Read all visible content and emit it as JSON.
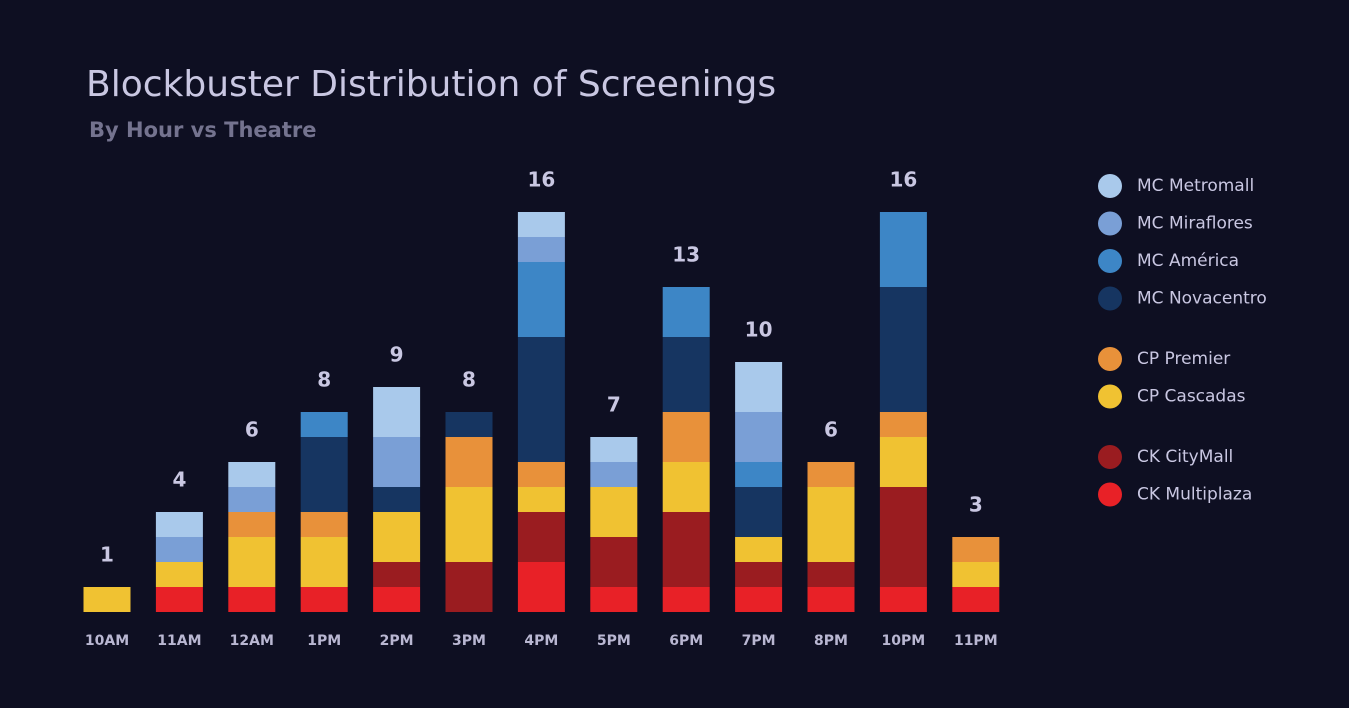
{
  "chart_data": {
    "type": "stacked_bar",
    "title": "Blockbuster Distribution of Screenings",
    "subtitle": "By Hour vs Theatre",
    "categories": [
      "10AM",
      "11AM",
      "12AM",
      "1PM",
      "2PM",
      "3PM",
      "4PM",
      "5PM",
      "6PM",
      "7PM",
      "8PM",
      "10PM",
      "11PM"
    ],
    "totals": [
      1,
      4,
      6,
      8,
      9,
      8,
      16,
      7,
      13,
      10,
      6,
      16,
      3
    ],
    "series": [
      {
        "name": "MC Metromall",
        "color": "#a9c9eb",
        "values": [
          0,
          1,
          1,
          0,
          2,
          0,
          1,
          1,
          0,
          2,
          0,
          0,
          0
        ]
      },
      {
        "name": "MC Miraflores",
        "color": "#7a9fd6",
        "values": [
          0,
          1,
          1,
          0,
          2,
          0,
          1,
          1,
          0,
          2,
          0,
          0,
          0
        ]
      },
      {
        "name": "MC América",
        "color": "#3d86c6",
        "values": [
          0,
          0,
          0,
          1,
          0,
          0,
          3,
          0,
          2,
          1,
          0,
          3,
          0
        ]
      },
      {
        "name": "MC Novacentro",
        "color": "#163561",
        "values": [
          0,
          0,
          0,
          3,
          1,
          1,
          5,
          0,
          3,
          2,
          0,
          5,
          0
        ]
      },
      {
        "name": "CP Premier",
        "color": "#e8913a",
        "values": [
          0,
          0,
          1,
          1,
          0,
          2,
          1,
          0,
          2,
          0,
          1,
          1,
          1
        ]
      },
      {
        "name": "CP Cascadas",
        "color": "#f0c232",
        "values": [
          1,
          1,
          2,
          2,
          2,
          3,
          1,
          2,
          2,
          1,
          3,
          2,
          1
        ]
      },
      {
        "name": "CK CityMall",
        "color": "#9a1c20",
        "values": [
          0,
          0,
          0,
          0,
          1,
          2,
          2,
          2,
          3,
          1,
          1,
          4,
          0
        ]
      },
      {
        "name": "CK Multiplaza",
        "color": "#e82127",
        "values": [
          0,
          1,
          1,
          1,
          1,
          0,
          2,
          1,
          1,
          1,
          1,
          1,
          1
        ]
      }
    ]
  }
}
